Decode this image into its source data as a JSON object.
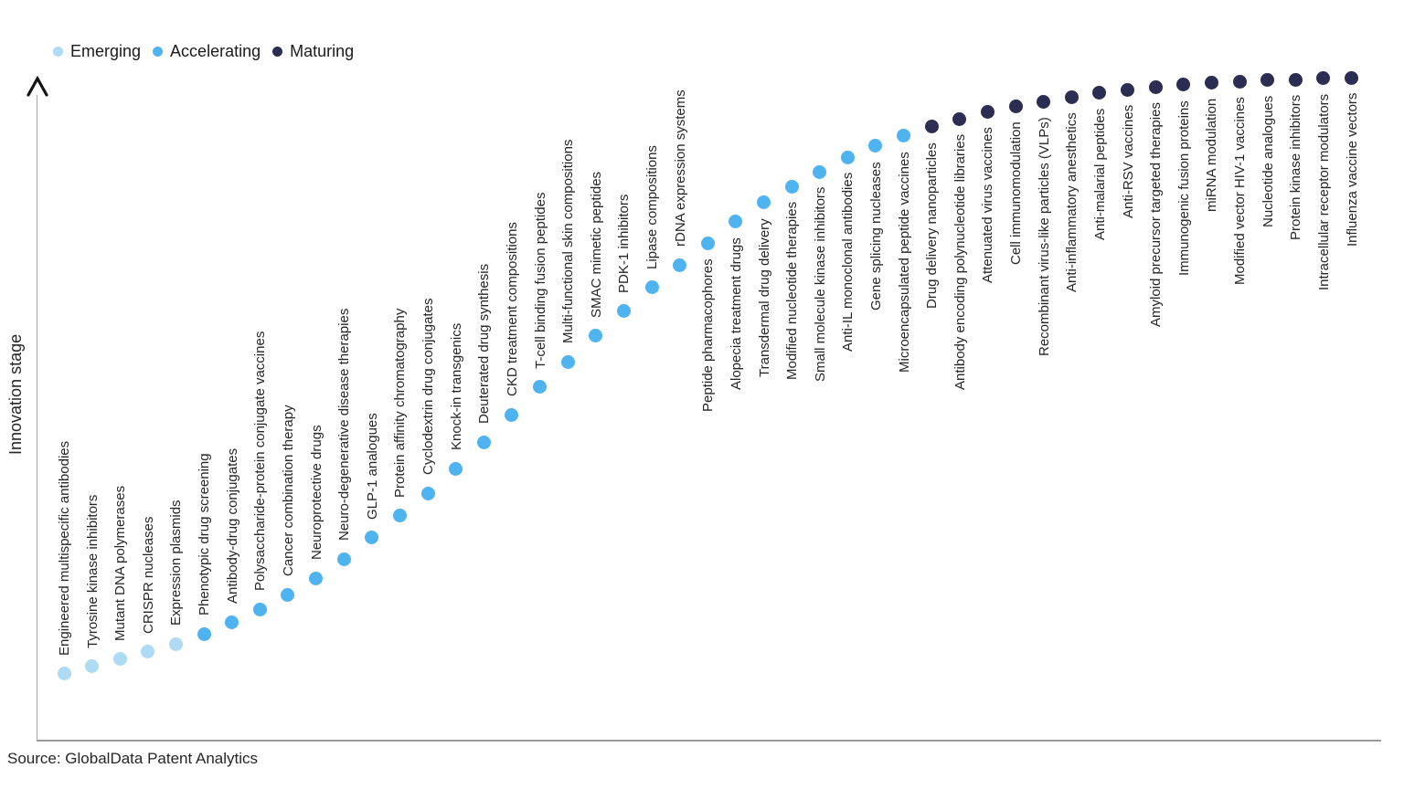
{
  "colors": {
    "stages": {
      "emerging": "#AEDAF4",
      "accelerating": "#4FB3F0",
      "maturing": "#2B2E52"
    },
    "axis_line": "#9E9E9E",
    "text": "#262626"
  },
  "legend": {
    "items": [
      {
        "label": "Emerging",
        "stage": "emerging"
      },
      {
        "label": "Accelerating",
        "stage": "accelerating"
      },
      {
        "label": "Maturing",
        "stage": "maturing"
      }
    ]
  },
  "y_axis": {
    "label": "Innovation stage",
    "arrow_icon": "chevron-up"
  },
  "source_note": "Source: GlobalData Patent Analytics",
  "chart_data": {
    "type": "scatter",
    "title": "",
    "xlabel": "",
    "ylabel": "Innovation stage",
    "legend_position": "top-left",
    "grid": false,
    "value_units": "normalized 0-1 position along innovation S-curve (estimated from pixels; axis is unlabeled/qualitative)",
    "stages": [
      "Emerging",
      "Accelerating",
      "Maturing"
    ],
    "items": [
      {
        "name": "Engineered multispecific antibodies",
        "stage": "emerging",
        "value": 0.102
      },
      {
        "name": "Tyrosine kinase inhibitors",
        "stage": "emerging",
        "value": 0.113
      },
      {
        "name": "Mutant DNA polymerases",
        "stage": "emerging",
        "value": 0.124
      },
      {
        "name": "CRISPR nucleases",
        "stage": "emerging",
        "value": 0.135
      },
      {
        "name": "Expression plasmids",
        "stage": "emerging",
        "value": 0.147
      },
      {
        "name": "Phenotypic drug screening",
        "stage": "accelerating",
        "value": 0.162
      },
      {
        "name": "Antibody-drug conjugates",
        "stage": "accelerating",
        "value": 0.18
      },
      {
        "name": "Polysaccharide-protein conjugate vaccines",
        "stage": "accelerating",
        "value": 0.199
      },
      {
        "name": "Cancer combination therapy",
        "stage": "accelerating",
        "value": 0.221
      },
      {
        "name": "Neuroprotective drugs",
        "stage": "accelerating",
        "value": 0.246
      },
      {
        "name": "Neuro-degenerative disease therapies",
        "stage": "accelerating",
        "value": 0.275
      },
      {
        "name": "GLP-1 analogues",
        "stage": "accelerating",
        "value": 0.307
      },
      {
        "name": "Protein affinity chromatography",
        "stage": "accelerating",
        "value": 0.34
      },
      {
        "name": "Cyclodextrin drug conjugates",
        "stage": "accelerating",
        "value": 0.374
      },
      {
        "name": "Knock-in transgenics",
        "stage": "accelerating",
        "value": 0.411
      },
      {
        "name": "Deuterated drug synthesis",
        "stage": "accelerating",
        "value": 0.451
      },
      {
        "name": "CKD treatment compositions",
        "stage": "accelerating",
        "value": 0.492
      },
      {
        "name": "T-cell binding fusion peptides",
        "stage": "accelerating",
        "value": 0.534
      },
      {
        "name": "Multi-functional skin compositions",
        "stage": "accelerating",
        "value": 0.572
      },
      {
        "name": "SMAC mimetic peptides",
        "stage": "accelerating",
        "value": 0.611
      },
      {
        "name": "PDK-1 inhibitors",
        "stage": "accelerating",
        "value": 0.648
      },
      {
        "name": "Lipase compositions",
        "stage": "accelerating",
        "value": 0.684
      },
      {
        "name": "rDNA expression systems",
        "stage": "accelerating",
        "value": 0.718
      },
      {
        "name": "Peptide pharmacophores",
        "stage": "accelerating",
        "value": 0.751
      },
      {
        "name": "Alopecia treatment drugs",
        "stage": "accelerating",
        "value": 0.783
      },
      {
        "name": "Transdermal drug delivery",
        "stage": "accelerating",
        "value": 0.812
      },
      {
        "name": "Modified nucleotide therapies",
        "stage": "accelerating",
        "value": 0.836
      },
      {
        "name": "Small molecule kinase inhibitors",
        "stage": "accelerating",
        "value": 0.858
      },
      {
        "name": "Anti-IL monoclonal antibodies",
        "stage": "accelerating",
        "value": 0.88
      },
      {
        "name": "Gene splicing nucleases",
        "stage": "accelerating",
        "value": 0.897
      },
      {
        "name": "Microencapsulated peptide vaccines",
        "stage": "accelerating",
        "value": 0.912
      },
      {
        "name": "Drug delivery nanoparticles",
        "stage": "maturing",
        "value": 0.926
      },
      {
        "name": "Antibody encoding polynucleotide libraries",
        "stage": "maturing",
        "value": 0.938
      },
      {
        "name": "Attenuated virus vaccines",
        "stage": "maturing",
        "value": 0.949
      },
      {
        "name": "Cell immunomodulation",
        "stage": "maturing",
        "value": 0.957
      },
      {
        "name": "Recombinant virus-like particles (VLPs)",
        "stage": "maturing",
        "value": 0.964
      },
      {
        "name": "Anti-inflammatory anesthetics",
        "stage": "maturing",
        "value": 0.971
      },
      {
        "name": "Anti-malarial peptides",
        "stage": "maturing",
        "value": 0.977
      },
      {
        "name": "Anti-RSV vaccines",
        "stage": "maturing",
        "value": 0.982
      },
      {
        "name": "Amyloid precursor targeted therapies",
        "stage": "maturing",
        "value": 0.986
      },
      {
        "name": "Immunogenic fusion proteins",
        "stage": "maturing",
        "value": 0.989
      },
      {
        "name": "miRNA modulation",
        "stage": "maturing",
        "value": 0.992
      },
      {
        "name": "Modified vector HIV-1 vaccines",
        "stage": "maturing",
        "value": 0.994
      },
      {
        "name": "Nucleotide analogues",
        "stage": "maturing",
        "value": 0.996
      },
      {
        "name": "Protein kinase inhibitors",
        "stage": "maturing",
        "value": 0.997
      },
      {
        "name": "Intracellular receptor modulators",
        "stage": "maturing",
        "value": 0.999
      },
      {
        "name": "Influenza vaccine vectors",
        "stage": "maturing",
        "value": 1.0
      }
    ]
  }
}
